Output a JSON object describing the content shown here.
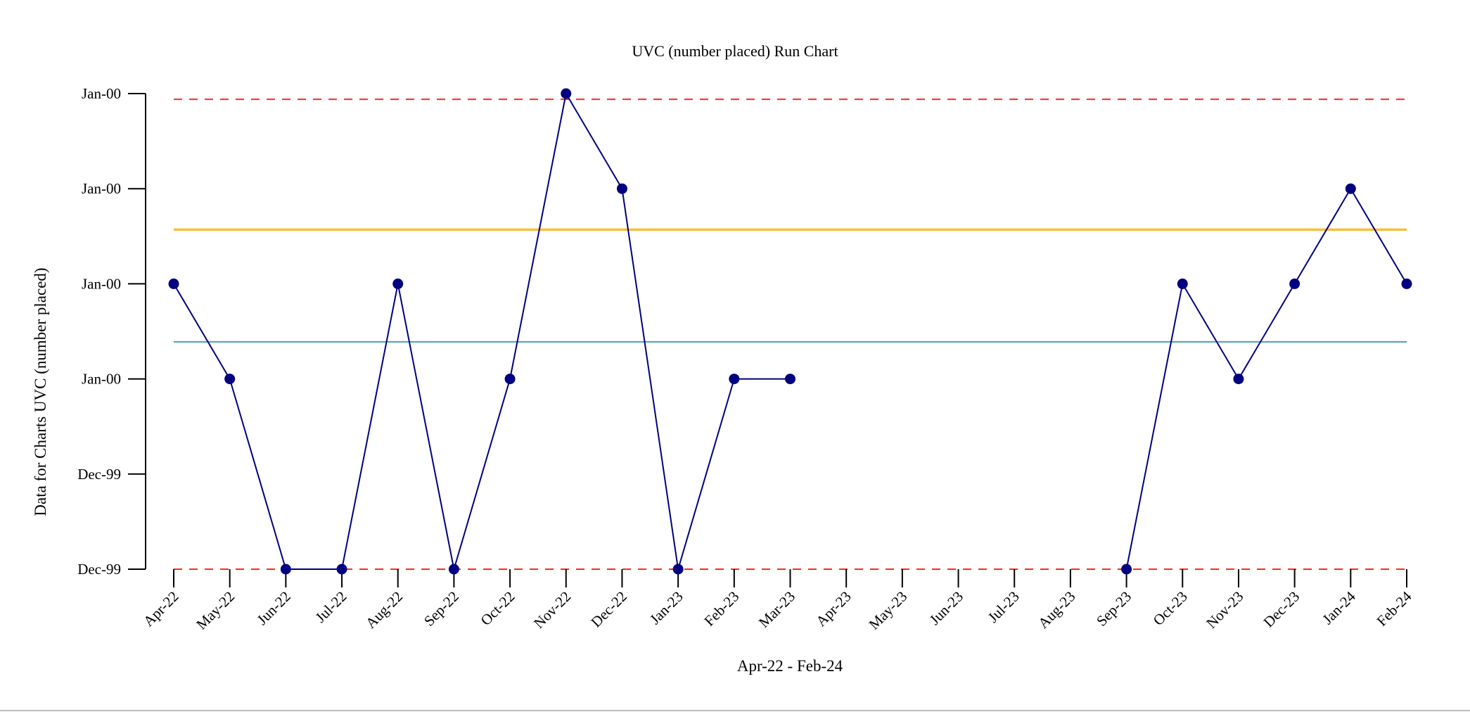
{
  "chart_data": {
    "type": "line",
    "title": "UVC (number placed) Run Chart",
    "xlabel": "Apr-22 - Feb-24",
    "ylabel": "Data for Charts UVC (number placed)",
    "categories": [
      "Apr-22",
      "May-22",
      "Jun-22",
      "Jul-22",
      "Aug-22",
      "Sep-22",
      "Oct-22",
      "Nov-22",
      "Dec-22",
      "Jan-23",
      "Feb-23",
      "Mar-23",
      "Apr-23",
      "May-23",
      "Jun-23",
      "Jul-23",
      "Aug-23",
      "Sep-23",
      "Oct-23",
      "Nov-23",
      "Dec-23",
      "Jan-24",
      "Feb-24"
    ],
    "y_tick_labels": [
      "Dec-99",
      "Dec-99",
      "Jan-00",
      "Jan-00",
      "Jan-00",
      "Jan-00"
    ],
    "ylim": [
      0,
      5
    ],
    "series": [
      {
        "values": [
          3,
          2,
          0,
          0,
          3,
          0,
          2,
          5,
          4,
          0,
          2,
          2,
          null,
          null,
          null,
          null,
          null,
          0,
          3,
          2,
          3,
          4,
          3
        ],
        "color": "#000080"
      }
    ],
    "reference_lines": [
      {
        "kind": "upper control limit",
        "value": 4.94,
        "color": "#ff2a1a",
        "style": "dashed"
      },
      {
        "kind": "lower control limit",
        "value": 0,
        "color": "#ff2a1a",
        "style": "dashed"
      },
      {
        "kind": "mean",
        "value": 3.57,
        "color": "#f6bf3c",
        "style": "solid"
      },
      {
        "kind": "median",
        "value": 2.39,
        "color": "#4a9fb5",
        "style": "solid"
      }
    ],
    "grid": false,
    "legend": "none"
  }
}
